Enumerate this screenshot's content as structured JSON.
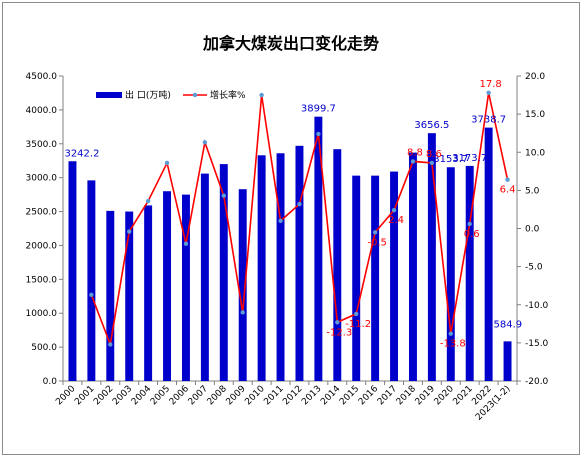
{
  "chart_data": {
    "type": "bar+line",
    "title": "加拿大煤炭出口变化走势",
    "categories": [
      "2000",
      "2001",
      "2002",
      "2003",
      "2004",
      "2005",
      "2006",
      "2007",
      "2008",
      "2009",
      "2010",
      "2011",
      "2012",
      "2013",
      "2014",
      "2015",
      "2016",
      "2017",
      "2018",
      "2019",
      "2020",
      "2021",
      "2022",
      "2023(1-2)"
    ],
    "series": [
      {
        "name": "出 口(万吨)",
        "type": "bar",
        "axis": "left",
        "color": "#0000cc",
        "values": [
          3242.2,
          2960,
          2510,
          2500,
          2590,
          2800,
          2750,
          3060,
          3200,
          2830,
          3330,
          3360,
          3470,
          3899.7,
          3420,
          3030,
          3030,
          3090,
          3370,
          3656.5,
          3153.7,
          3173.7,
          3738.7,
          584.9
        ]
      },
      {
        "name": "增长率%",
        "type": "line",
        "axis": "right",
        "color": "#ff0000",
        "marker_color": "#5b9bd5",
        "values": [
          null,
          -8.7,
          -15.2,
          -0.4,
          3.6,
          8.6,
          -2.0,
          11.3,
          4.3,
          -11.0,
          17.5,
          1.0,
          3.2,
          12.4,
          -12.3,
          -11.2,
          -0.5,
          2.4,
          8.8,
          8.6,
          -13.8,
          0.6,
          17.8,
          6.4
        ]
      }
    ],
    "data_labels": {
      "bars": [
        {
          "index": 0,
          "text": "3242.2"
        },
        {
          "index": 13,
          "text": "3899.7"
        },
        {
          "index": 19,
          "text": "3656.5"
        },
        {
          "index": 20,
          "text": "3153.7"
        },
        {
          "index": 21,
          "text": "3173.7"
        },
        {
          "index": 22,
          "text": "3738.7"
        },
        {
          "index": 23,
          "text": "584.9"
        }
      ],
      "line": [
        {
          "index": 14,
          "text": "-12.3"
        },
        {
          "index": 15,
          "text": "-11.2"
        },
        {
          "index": 16,
          "text": "-0.5"
        },
        {
          "index": 17,
          "text": "2.4"
        },
        {
          "index": 18,
          "text": "8.8"
        },
        {
          "index": 19,
          "text": "8.6"
        },
        {
          "index": 20,
          "text": "-13.8"
        },
        {
          "index": 21,
          "text": "0.6"
        },
        {
          "index": 22,
          "text": "17.8"
        },
        {
          "index": 23,
          "text": "6.4"
        }
      ]
    },
    "y_left": {
      "min": 0,
      "max": 4500,
      "step": 500,
      "ticks": [
        "0.0",
        "500.0",
        "1000.0",
        "1500.0",
        "2000.0",
        "2500.0",
        "3000.0",
        "3500.0",
        "4000.0",
        "4500.0"
      ]
    },
    "y_right": {
      "min": -20,
      "max": 20,
      "step": 5,
      "ticks": [
        "-20.0",
        "-15.0",
        "-10.0",
        "-5.0",
        "0.0",
        "5.0",
        "10.0",
        "15.0",
        "20.0"
      ]
    },
    "grid": false,
    "legend_position": "top-left",
    "colors": {
      "bar": "#0000cc",
      "line": "#ff0000",
      "marker": "#5b9bd5",
      "bar_label": "#0000cc",
      "line_label": "#ff0000"
    }
  }
}
